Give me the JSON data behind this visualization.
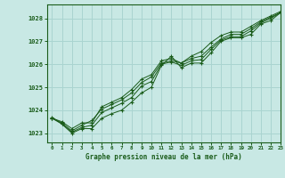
{
  "title": "Graphe pression niveau de la mer (hPa)",
  "bg_color": "#c8e8e4",
  "grid_color": "#aad4d0",
  "line_color": "#1a5c1a",
  "xlim": [
    -0.5,
    23
  ],
  "ylim": [
    1022.6,
    1028.6
  ],
  "yticks": [
    1023,
    1024,
    1025,
    1026,
    1027,
    1028
  ],
  "xticks": [
    0,
    1,
    2,
    3,
    4,
    5,
    6,
    7,
    8,
    9,
    10,
    11,
    12,
    13,
    14,
    15,
    16,
    17,
    18,
    19,
    20,
    21,
    22,
    23
  ],
  "series": [
    [
      1023.7,
      1023.4,
      1023.0,
      1023.2,
      1023.2,
      1023.65,
      1023.85,
      1024.0,
      1024.35,
      1024.75,
      1025.0,
      1025.95,
      1026.35,
      1025.85,
      1026.05,
      1026.05,
      1026.5,
      1027.0,
      1027.15,
      1027.15,
      1027.3,
      1027.75,
      1027.9,
      1028.25
    ],
    [
      1023.65,
      1023.4,
      1023.05,
      1023.25,
      1023.35,
      1023.9,
      1024.1,
      1024.3,
      1024.55,
      1025.05,
      1025.25,
      1026.0,
      1026.1,
      1025.95,
      1026.15,
      1026.2,
      1026.65,
      1027.05,
      1027.2,
      1027.2,
      1027.45,
      1027.8,
      1028.0,
      1028.25
    ],
    [
      1023.65,
      1023.45,
      1023.1,
      1023.35,
      1023.55,
      1024.05,
      1024.25,
      1024.45,
      1024.75,
      1025.2,
      1025.45,
      1026.05,
      1026.15,
      1026.05,
      1026.25,
      1026.35,
      1026.75,
      1027.1,
      1027.3,
      1027.3,
      1027.55,
      1027.85,
      1028.05,
      1028.25
    ],
    [
      1023.65,
      1023.5,
      1023.2,
      1023.45,
      1023.45,
      1024.15,
      1024.35,
      1024.55,
      1024.9,
      1025.35,
      1025.55,
      1026.15,
      1026.25,
      1026.05,
      1026.35,
      1026.55,
      1026.95,
      1027.25,
      1027.4,
      1027.4,
      1027.65,
      1027.9,
      1028.1,
      1028.3
    ]
  ]
}
